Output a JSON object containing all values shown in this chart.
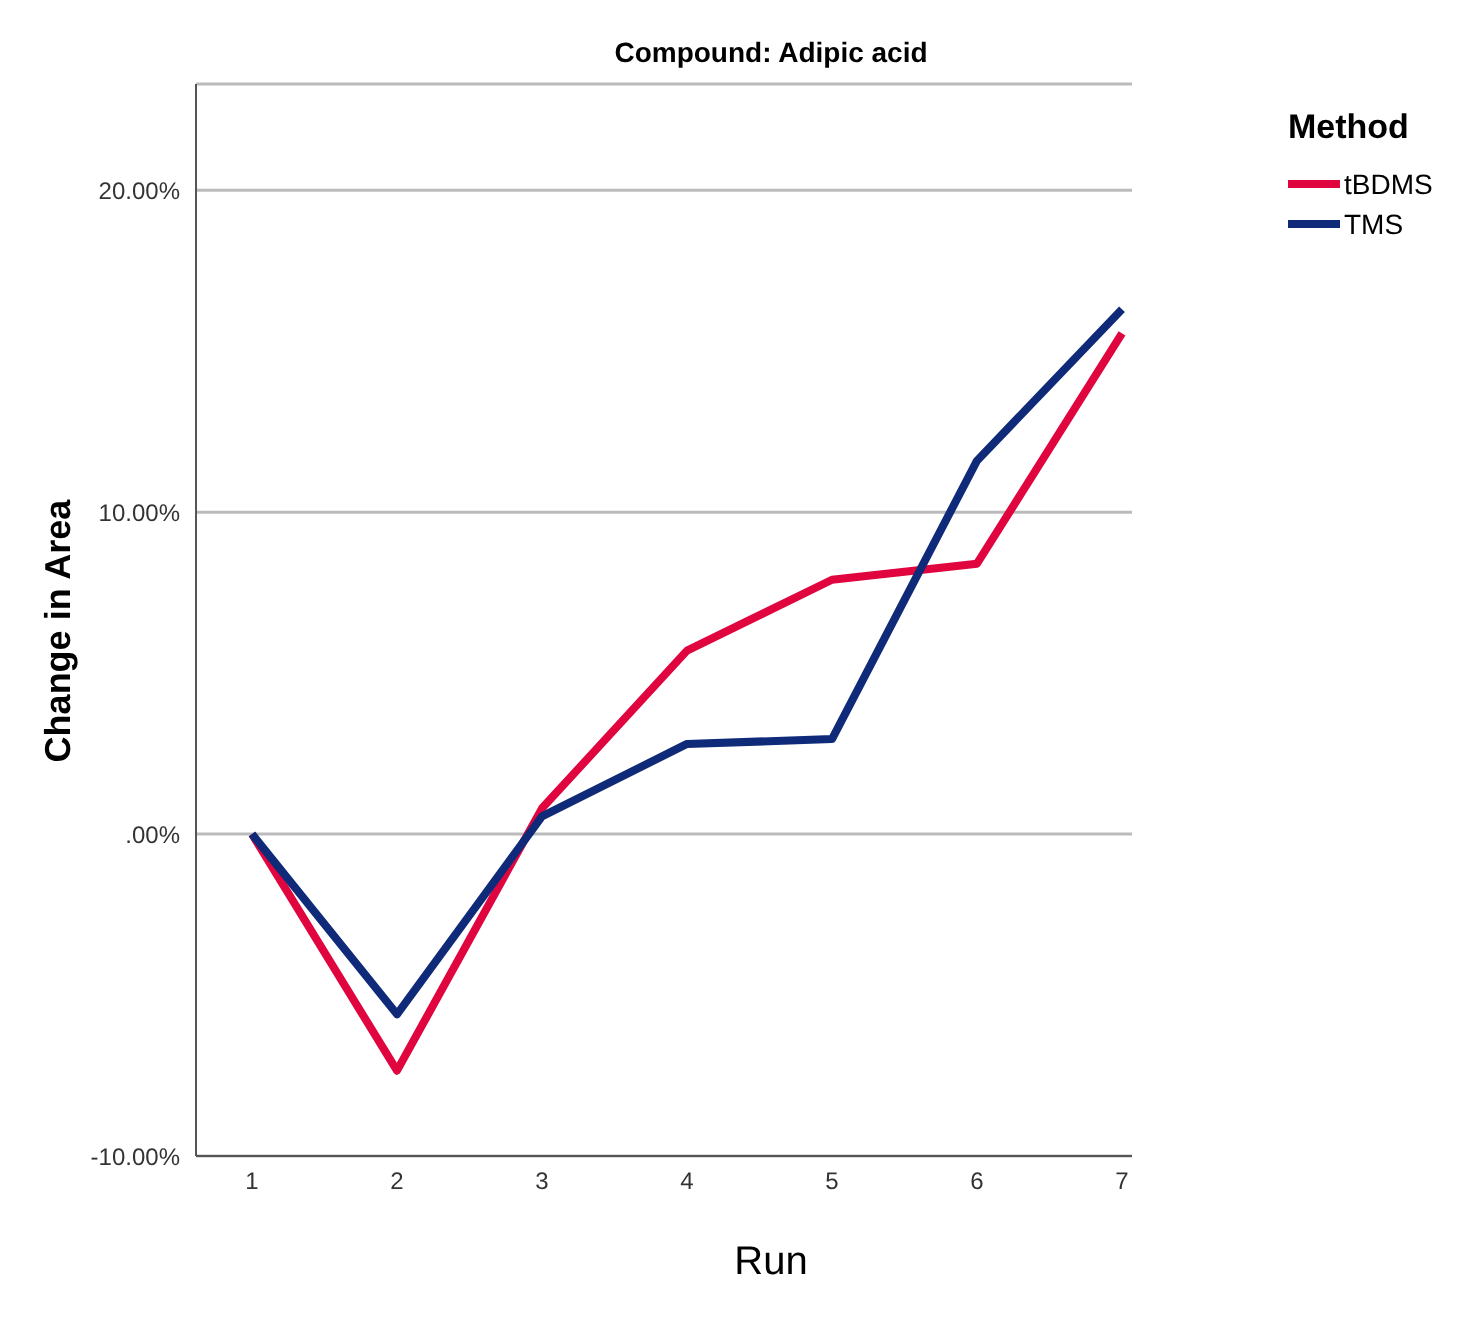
{
  "chart_data": {
    "type": "line",
    "title": "Compound: Adipic acid",
    "xlabel": "Run",
    "ylabel": "Change in Area",
    "legend_title": "Method",
    "categories": [
      "1",
      "2",
      "3",
      "4",
      "5",
      "6",
      "7"
    ],
    "series": [
      {
        "name": "tBDMS",
        "color": "#e0053f",
        "values": [
          0,
          -7.35,
          0.8,
          5.7,
          7.9,
          8.4,
          15.55
        ]
      },
      {
        "name": "TMS",
        "color": "#0f2a78",
        "values": [
          0,
          -5.6,
          0.55,
          2.8,
          2.95,
          11.6,
          16.3
        ]
      }
    ],
    "ylim": [
      -10,
      23.3
    ],
    "yticks": [
      {
        "value": -10,
        "label": "-10.00%"
      },
      {
        "value": 0,
        "label": ".00%"
      },
      {
        "value": 10,
        "label": "10.00%"
      },
      {
        "value": 20,
        "label": "20.00%"
      }
    ],
    "grid": "y",
    "legend": "top right",
    "marker": "none",
    "line_style": "solid"
  }
}
